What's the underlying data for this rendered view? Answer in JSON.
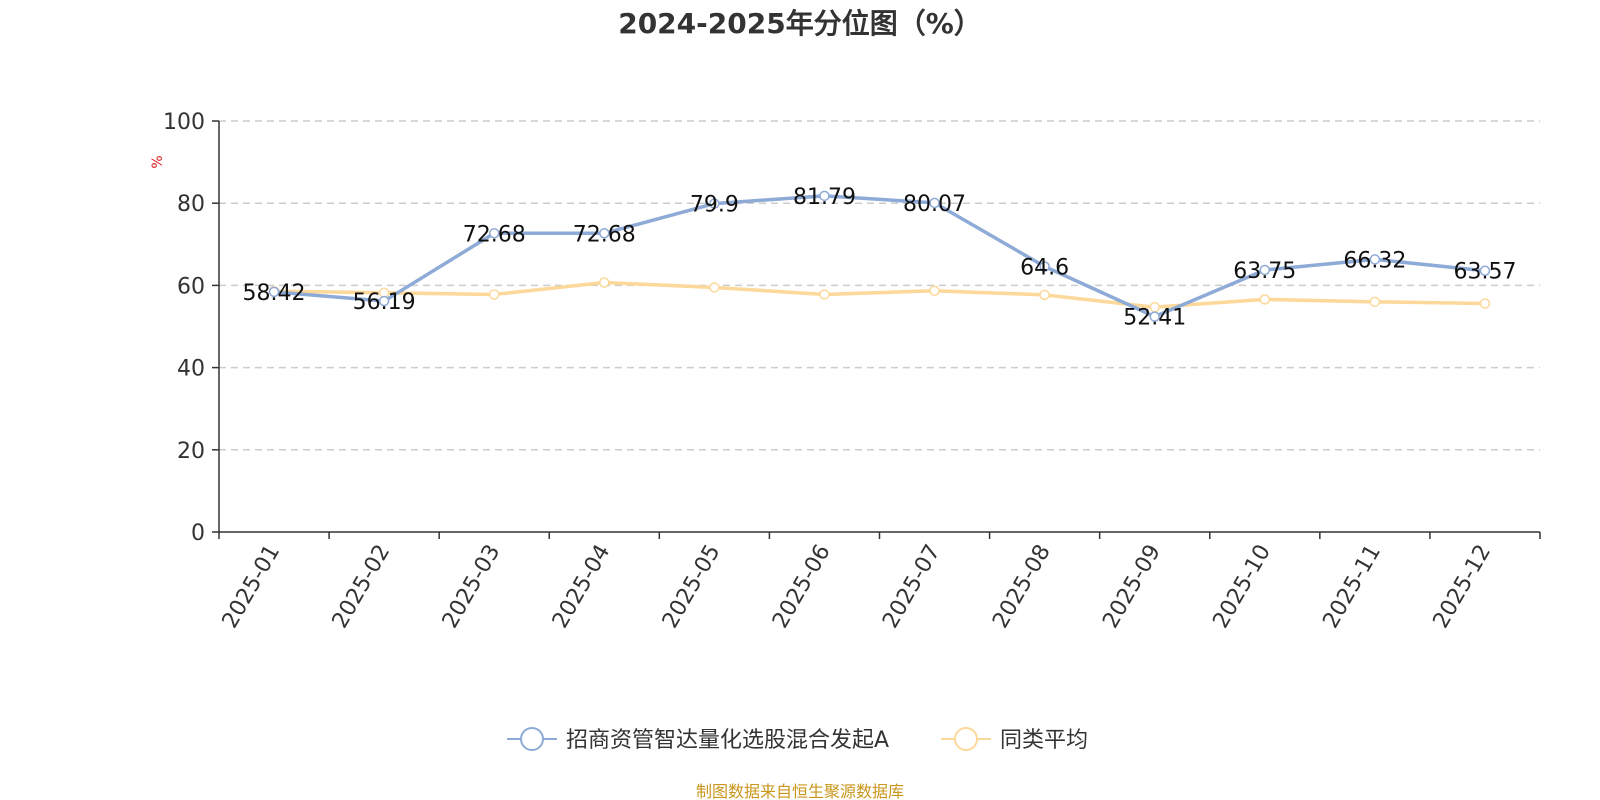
{
  "chart_data": {
    "type": "line",
    "title": "2024-2025年分位图（%）",
    "ylabel": "%",
    "ylim": [
      0,
      100
    ],
    "yticks": [
      0,
      20,
      40,
      60,
      80,
      100
    ],
    "grid": true,
    "legend_position": "bottom-center",
    "categories": [
      "2025-01",
      "2025-02",
      "2025-03",
      "2025-04",
      "2025-05",
      "2025-06",
      "2025-07",
      "2025-08",
      "2025-09",
      "2025-10",
      "2025-11",
      "2025-12"
    ],
    "series": [
      {
        "name": "招商资管智达量化选股混合发起A",
        "color": "#8eaad6",
        "values": [
          58.42,
          56.19,
          72.68,
          72.68,
          79.9,
          81.79,
          80.07,
          64.6,
          52.41,
          63.75,
          66.32,
          63.57
        ],
        "labels": [
          "58.42",
          "56.19",
          "72.68",
          "72.68",
          "79.9",
          "81.79",
          "80.07",
          "64.6",
          "52.41",
          "63.75",
          "66.32",
          "63.57"
        ]
      },
      {
        "name": "同类平均",
        "color": "#fcd89a",
        "values": [
          58.6,
          58.2,
          57.8,
          60.7,
          59.5,
          57.8,
          58.7,
          57.7,
          54.7,
          56.6,
          56.0,
          55.6
        ]
      }
    ],
    "source": "制图数据来自恒生聚源数据库",
    "source_color": "#c9961a",
    "ylabel_color": "#e02020"
  }
}
